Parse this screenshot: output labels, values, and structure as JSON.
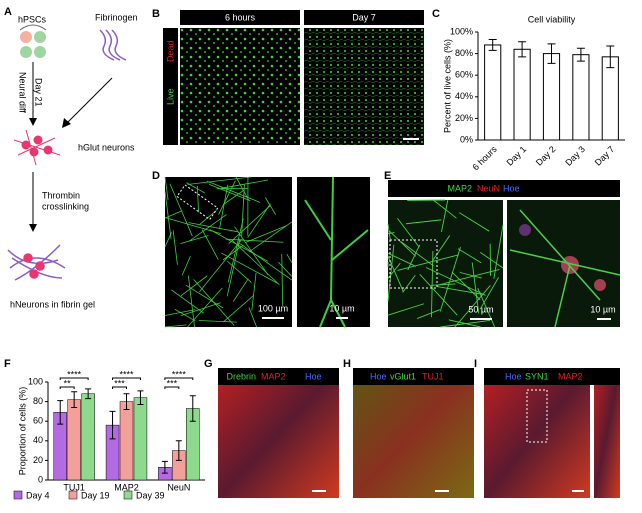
{
  "panel_a": {
    "letter": "A",
    "source": "hPSCs",
    "material": "Fibrinogen",
    "duration": "Day 21",
    "step1": "Neural diff",
    "product": "hGlut neurons",
    "step2_line1": "Thrombin",
    "step2_line2": "crosslinking",
    "result": "hNeurons in fibrin gel"
  },
  "panel_b": {
    "letter": "B",
    "headers": [
      "6 hours",
      "Day 7"
    ],
    "stain_live": "Live",
    "stain_dead": "Dead"
  },
  "panel_d": {
    "letter": "D",
    "scale_bars": [
      "100 µm",
      "10 µm"
    ]
  },
  "panel_e": {
    "letter": "E",
    "stains": [
      "MAP2",
      "NeuN",
      "Hoe"
    ],
    "scale_bars": [
      "50 µm",
      "10 µm"
    ]
  },
  "panel_g": {
    "letter": "G",
    "stains": [
      "Drebrin",
      "MAP2",
      "Hoe"
    ]
  },
  "panel_h": {
    "letter": "H",
    "stains": [
      "Hoe",
      "vGlut1",
      "TUJ1"
    ]
  },
  "panel_i": {
    "letter": "I",
    "stains": [
      "Hoe",
      "SYN1",
      "MAP2"
    ]
  },
  "chart_data": [
    {
      "type": "bar",
      "letter": "C",
      "title": "Cell viability",
      "ylabel": "Percent of live cells (%)",
      "categories": [
        "6 hours",
        "Day 1",
        "Day 2",
        "Day 3",
        "Day 7"
      ],
      "values": [
        88,
        84,
        80,
        79,
        77
      ],
      "errors": [
        5,
        7,
        9,
        6,
        10
      ],
      "color": "#ffffff",
      "ylim": [
        0,
        100
      ],
      "yticks": [
        {
          "value": 0,
          "label": "0%"
        },
        {
          "value": 20,
          "label": "20%"
        },
        {
          "value": 40,
          "label": "40%"
        },
        {
          "value": 60,
          "label": "60%"
        },
        {
          "value": 80,
          "label": "80%"
        },
        {
          "value": 100,
          "label": "100%"
        }
      ]
    },
    {
      "type": "grouped_bar",
      "letter": "F",
      "ylabel": "Proportion of cells (%)",
      "categories": [
        "TUJ1",
        "MAP2",
        "NeuN"
      ],
      "series": [
        {
          "name": "Day 4",
          "color": "#b36ae2",
          "values": [
            69,
            56,
            13
          ],
          "errors": [
            12,
            14,
            6
          ]
        },
        {
          "name": "Day 19",
          "color": "#f4a09a",
          "values": [
            82,
            80,
            30
          ],
          "errors": [
            8,
            8,
            10
          ]
        },
        {
          "name": "Day 39",
          "color": "#8fd98f",
          "values": [
            88,
            84,
            73
          ],
          "errors": [
            5,
            7,
            13
          ]
        }
      ],
      "annotations": [
        "****",
        "**",
        "****",
        "***",
        "****",
        "***"
      ],
      "ylim": [
        0,
        100
      ],
      "yticks": [
        0,
        20,
        40,
        60,
        80,
        100
      ]
    }
  ]
}
